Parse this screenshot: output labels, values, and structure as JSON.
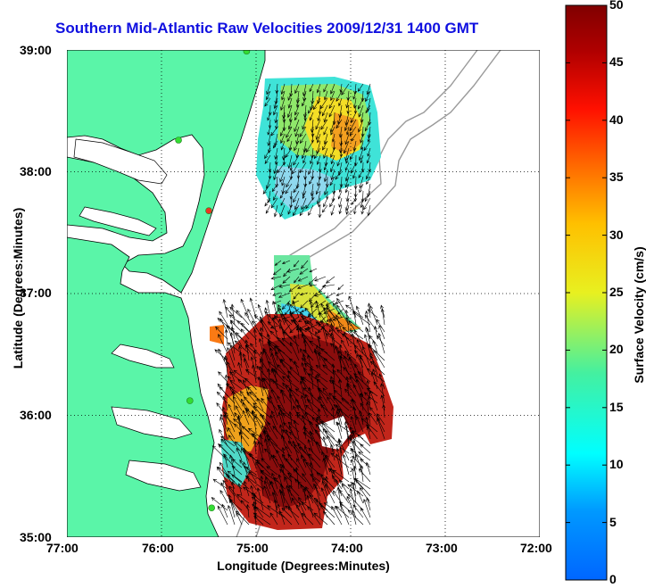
{
  "title": "Southern Mid-Atlantic Raw Velocities 2009/12/31 1400 GMT",
  "x_axis": {
    "label": "Longitude (Degrees:Minutes)",
    "ticks": [
      "77:00",
      "76:00",
      "75:00",
      "74:00",
      "73:00",
      "72:00"
    ]
  },
  "y_axis": {
    "label": "Latitude (Degrees:Minutes)",
    "ticks": [
      "39:00",
      "38:00",
      "37:00",
      "36:00",
      "35:00"
    ]
  },
  "colorbar": {
    "label": "Surface Velocity (cm/s)",
    "ticks": [
      "0",
      "5",
      "10",
      "15",
      "20",
      "25",
      "30",
      "35",
      "40",
      "45",
      "50"
    ],
    "min": 0,
    "max": 50
  },
  "colors": {
    "land": "#5af5a8",
    "title": "#1010e0",
    "bathymetry": "#9a9a9a",
    "station": "#33dd33",
    "station_alt": "#ee3322"
  },
  "chart_data": {
    "type": "map",
    "lon_range": [
      -77,
      -72
    ],
    "lat_range": [
      35,
      39
    ],
    "grid": true,
    "stations": [
      {
        "lon": -75.1,
        "lat": 38.99
      },
      {
        "lon": -75.82,
        "lat": 38.26
      },
      {
        "lon": -75.5,
        "lat": 37.68
      },
      {
        "lon": -75.7,
        "lat": 36.12
      },
      {
        "lon": -75.47,
        "lat": 35.24
      }
    ],
    "velocity_regions": [
      {
        "name": "north",
        "speed_range": [
          12,
          35
        ]
      },
      {
        "name": "middle",
        "speed_range": [
          10,
          35
        ]
      },
      {
        "name": "south",
        "speed_range": [
          18,
          50
        ]
      }
    ]
  }
}
